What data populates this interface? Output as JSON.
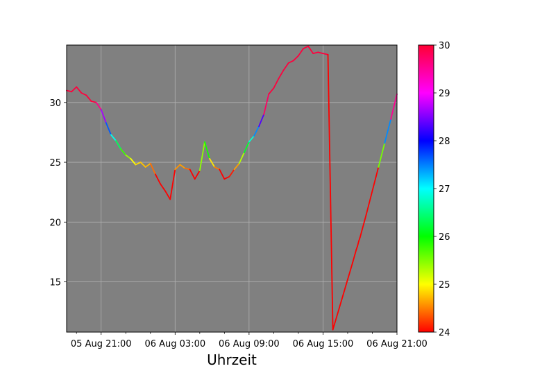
{
  "chart_data": {
    "type": "line",
    "title": "",
    "xlabel": "Uhrzeit",
    "ylabel": "",
    "x_ticks": [
      {
        "label": "05 Aug 21:00",
        "hours": 21
      },
      {
        "label": "06 Aug 03:00",
        "hours": 27
      },
      {
        "label": "06 Aug 09:00",
        "hours": 33
      },
      {
        "label": "06 Aug 15:00",
        "hours": 39
      },
      {
        "label": "06 Aug 21:00",
        "hours": 45
      }
    ],
    "xlim_hours": [
      18.2,
      45
    ],
    "y_ticks": [
      15,
      20,
      25,
      30
    ],
    "ylim": [
      10.8,
      34.8
    ],
    "grid": true,
    "background": "#808080",
    "series": [
      {
        "x_hours": [
          18.2,
          18.6,
          19.0,
          19.4,
          19.8,
          20.2,
          20.6,
          21.0,
          21.4,
          21.8,
          22.2,
          22.6,
          23.0,
          23.4,
          23.8,
          24.2,
          24.6,
          25.0,
          25.4,
          25.8,
          26.2,
          26.6,
          27.0,
          27.4,
          27.8,
          28.2,
          28.6,
          29.0,
          29.4,
          29.8,
          30.2,
          30.6,
          31.0,
          31.4,
          31.8,
          32.2,
          32.6,
          33.0,
          33.4,
          33.8,
          34.2,
          34.6,
          35.0,
          35.4,
          35.8,
          36.2,
          36.6,
          37.0,
          37.4,
          37.8,
          38.2,
          38.6,
          39.0,
          39.4,
          39.8,
          40.2,
          40.6,
          41.0,
          41.4,
          41.7,
          41.8,
          41.9,
          42.0,
          42.5,
          43.0,
          43.5,
          44.0,
          44.5,
          45.0
        ],
        "values": [
          31.0,
          30.9,
          31.3,
          30.8,
          30.6,
          30.1,
          30.0,
          29.4,
          28.3,
          27.3,
          26.8,
          26.1,
          25.6,
          25.3,
          24.8,
          25.0,
          24.6,
          24.9,
          24.0,
          23.2,
          22.6,
          21.9,
          24.4,
          24.8,
          24.5,
          24.4,
          23.6,
          24.3,
          26.7,
          25.3,
          24.6,
          24.4,
          23.6,
          23.8,
          24.4,
          24.9,
          25.8,
          26.7,
          27.2,
          28.0,
          29.0,
          30.7,
          31.2,
          32.0,
          32.7,
          33.3,
          33.5,
          33.9,
          34.5,
          34.7,
          34.1,
          34.2,
          34.1,
          34.0,
          11.0,
          12.4,
          13.8,
          15.2,
          16.6,
          17.7,
          18.0,
          18.4,
          18.7,
          20.6,
          22.6,
          24.6,
          26.6,
          28.6,
          30.7
        ],
        "colorbar_min": 24,
        "colorbar_max": 30,
        "colormap": "hsv"
      }
    ],
    "colorbar_ticks": [
      24,
      25,
      26,
      27,
      28,
      29,
      30
    ]
  }
}
